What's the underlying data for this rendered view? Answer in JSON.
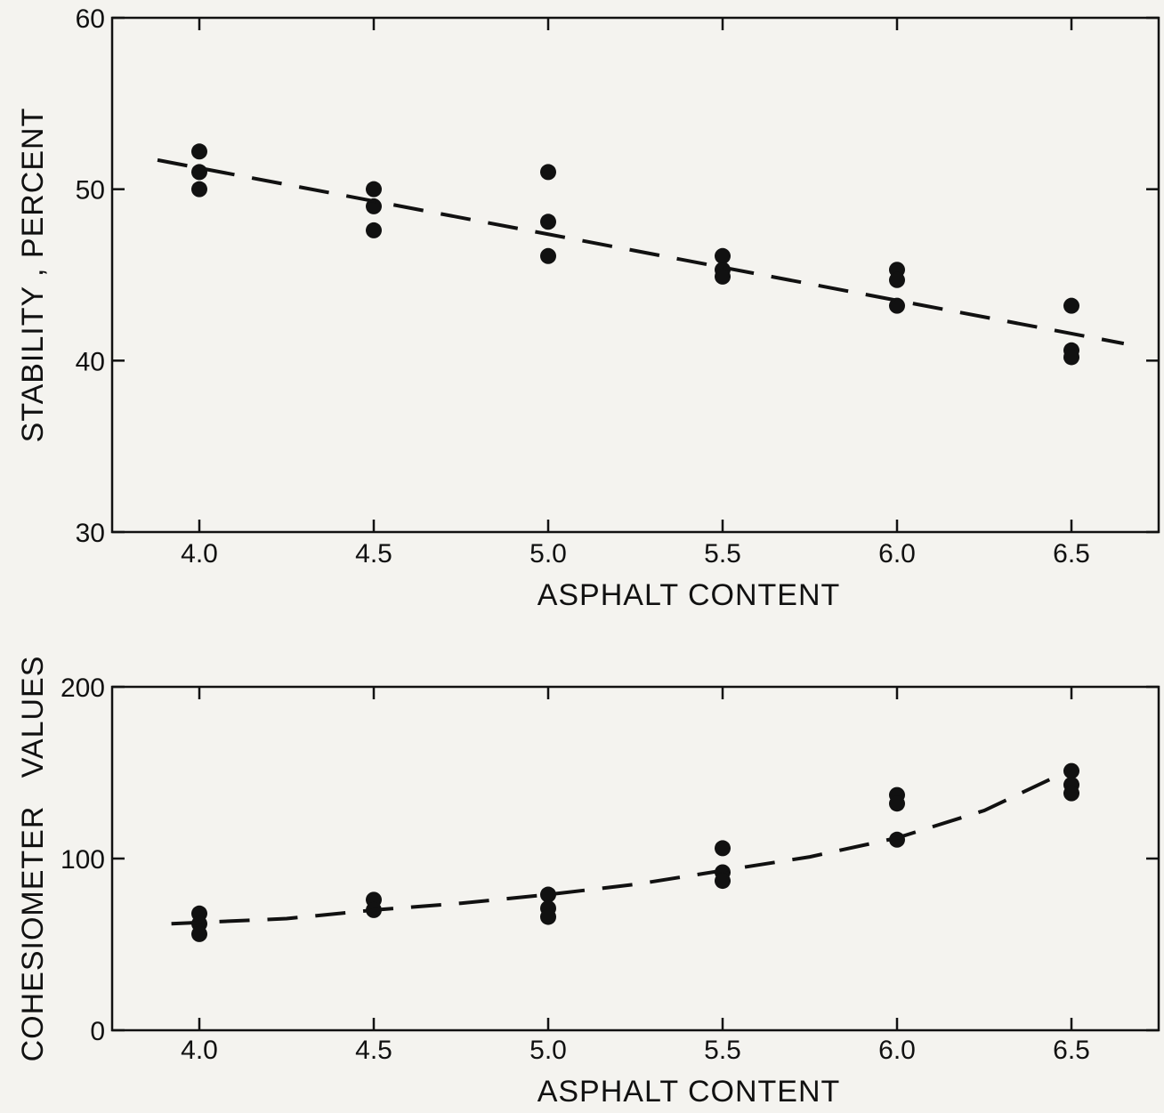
{
  "chart_data": [
    {
      "type": "scatter",
      "title": "",
      "xlabel": "ASPHALT CONTENT",
      "ylabel": "STABILITY , PERCENT",
      "xlim": [
        3.75,
        6.75
      ],
      "ylim": [
        30,
        60
      ],
      "x_ticks": [
        "4.0",
        "4.5",
        "5.0",
        "5.5",
        "6.0",
        "6.5"
      ],
      "y_ticks": [
        "30",
        "40",
        "50",
        "60"
      ],
      "grid": false,
      "series": [
        {
          "style": "points",
          "points": [
            [
              4.0,
              52.2
            ],
            [
              4.0,
              51.0
            ],
            [
              4.0,
              50.0
            ],
            [
              4.5,
              50.0
            ],
            [
              4.5,
              49.0
            ],
            [
              4.5,
              47.6
            ],
            [
              5.0,
              51.0
            ],
            [
              5.0,
              48.1
            ],
            [
              5.0,
              46.1
            ],
            [
              5.5,
              46.1
            ],
            [
              5.5,
              45.3
            ],
            [
              5.5,
              44.9
            ],
            [
              6.0,
              45.3
            ],
            [
              6.0,
              44.7
            ],
            [
              6.0,
              43.2
            ],
            [
              6.5,
              43.2
            ],
            [
              6.5,
              40.6
            ],
            [
              6.5,
              40.2
            ]
          ]
        },
        {
          "style": "dashed-fit",
          "points": [
            [
              3.88,
              51.7
            ],
            [
              6.65,
              41.0
            ]
          ]
        }
      ]
    },
    {
      "type": "scatter",
      "title": "",
      "xlabel": "ASPHALT CONTENT",
      "ylabel": "COHESIOMETER   VALUES",
      "xlim": [
        3.75,
        6.75
      ],
      "ylim": [
        0,
        200
      ],
      "x_ticks": [
        "4.0",
        "4.5",
        "5.0",
        "5.5",
        "6.0",
        "6.5"
      ],
      "y_ticks": [
        "0",
        "100",
        "200"
      ],
      "grid": false,
      "series": [
        {
          "style": "points",
          "points": [
            [
              4.0,
              68
            ],
            [
              4.0,
              62
            ],
            [
              4.0,
              56
            ],
            [
              4.5,
              76
            ],
            [
              4.5,
              70
            ],
            [
              5.0,
              79
            ],
            [
              5.0,
              71
            ],
            [
              5.0,
              66
            ],
            [
              5.5,
              106
            ],
            [
              5.5,
              92
            ],
            [
              5.5,
              87
            ],
            [
              6.0,
              137
            ],
            [
              6.0,
              132
            ],
            [
              6.0,
              111
            ],
            [
              6.5,
              151
            ],
            [
              6.5,
              143
            ],
            [
              6.5,
              138
            ]
          ]
        },
        {
          "style": "dashed-fit",
          "points": [
            [
              3.92,
              62
            ],
            [
              4.25,
              65
            ],
            [
              4.5,
              70
            ],
            [
              4.75,
              74
            ],
            [
              5.0,
              79
            ],
            [
              5.25,
              85
            ],
            [
              5.5,
              93
            ],
            [
              5.75,
              101
            ],
            [
              6.0,
              112
            ],
            [
              6.25,
              128
            ],
            [
              6.5,
              152
            ]
          ]
        }
      ]
    }
  ]
}
